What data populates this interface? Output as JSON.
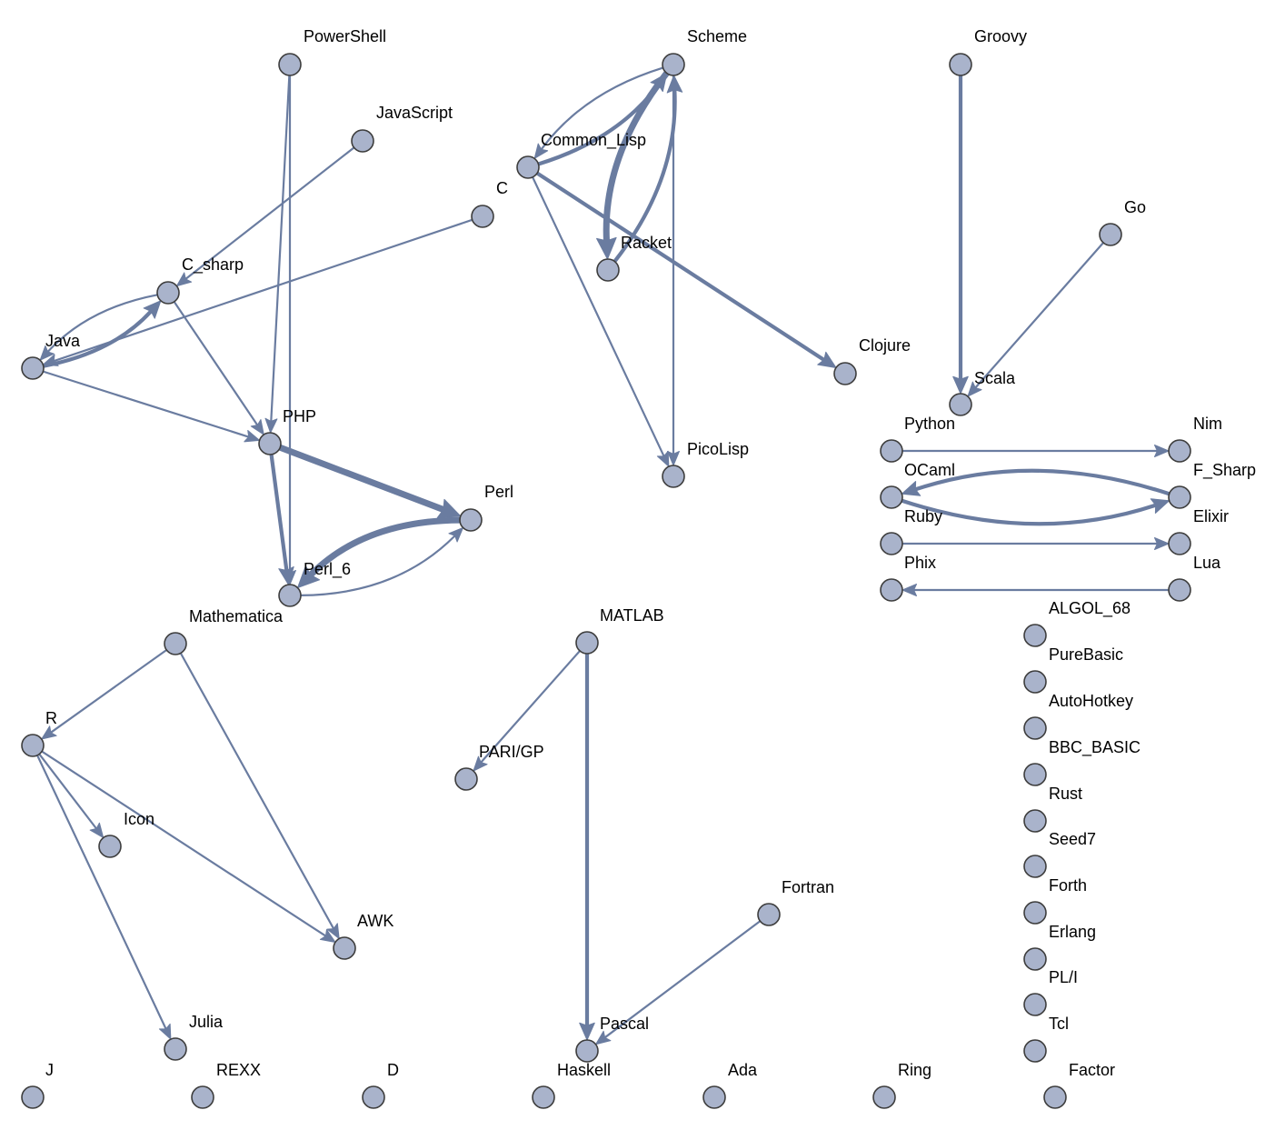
{
  "graph": {
    "nodes": [
      {
        "id": "PowerShell",
        "label": "PowerShell"
      },
      {
        "id": "JavaScript",
        "label": "JavaScript"
      },
      {
        "id": "C",
        "label": "C"
      },
      {
        "id": "C_sharp",
        "label": "C_sharp"
      },
      {
        "id": "Java",
        "label": "Java"
      },
      {
        "id": "PHP",
        "label": "PHP"
      },
      {
        "id": "Perl",
        "label": "Perl"
      },
      {
        "id": "Perl_6",
        "label": "Perl_6"
      },
      {
        "id": "Scheme",
        "label": "Scheme"
      },
      {
        "id": "Common_Lisp",
        "label": "Common_Lisp"
      },
      {
        "id": "Racket",
        "label": "Racket"
      },
      {
        "id": "Clojure",
        "label": "Clojure"
      },
      {
        "id": "PicoLisp",
        "label": "PicoLisp"
      },
      {
        "id": "Groovy",
        "label": "Groovy"
      },
      {
        "id": "Go",
        "label": "Go"
      },
      {
        "id": "Scala",
        "label": "Scala"
      },
      {
        "id": "Python",
        "label": "Python"
      },
      {
        "id": "Nim",
        "label": "Nim"
      },
      {
        "id": "OCaml",
        "label": "OCaml"
      },
      {
        "id": "F_Sharp",
        "label": "F_Sharp"
      },
      {
        "id": "Ruby",
        "label": "Ruby"
      },
      {
        "id": "Elixir",
        "label": "Elixir"
      },
      {
        "id": "Phix",
        "label": "Phix"
      },
      {
        "id": "Lua",
        "label": "Lua"
      },
      {
        "id": "ALGOL_68",
        "label": "ALGOL_68"
      },
      {
        "id": "PureBasic",
        "label": "PureBasic"
      },
      {
        "id": "AutoHotkey",
        "label": "AutoHotkey"
      },
      {
        "id": "BBC_BASIC",
        "label": "BBC_BASIC"
      },
      {
        "id": "Rust",
        "label": "Rust"
      },
      {
        "id": "Seed7",
        "label": "Seed7"
      },
      {
        "id": "Forth",
        "label": "Forth"
      },
      {
        "id": "Erlang",
        "label": "Erlang"
      },
      {
        "id": "PL_I",
        "label": "PL/I"
      },
      {
        "id": "Tcl",
        "label": "Tcl"
      },
      {
        "id": "Mathematica",
        "label": "Mathematica"
      },
      {
        "id": "R",
        "label": "R"
      },
      {
        "id": "Icon",
        "label": "Icon"
      },
      {
        "id": "AWK",
        "label": "AWK"
      },
      {
        "id": "Julia",
        "label": "Julia"
      },
      {
        "id": "MATLAB",
        "label": "MATLAB"
      },
      {
        "id": "PARI_GP",
        "label": "PARI/GP"
      },
      {
        "id": "Fortran",
        "label": "Fortran"
      },
      {
        "id": "Pascal",
        "label": "Pascal"
      },
      {
        "id": "J",
        "label": "J"
      },
      {
        "id": "REXX",
        "label": "REXX"
      },
      {
        "id": "D",
        "label": "D"
      },
      {
        "id": "Haskell",
        "label": "Haskell"
      },
      {
        "id": "Ada",
        "label": "Ada"
      },
      {
        "id": "Ring",
        "label": "Ring"
      },
      {
        "id": "Factor",
        "label": "Factor"
      }
    ],
    "edges": [
      {
        "from": "PowerShell",
        "to": "PHP",
        "weight": 1
      },
      {
        "from": "PowerShell",
        "to": "Perl_6",
        "weight": 1
      },
      {
        "from": "JavaScript",
        "to": "C_sharp",
        "weight": 1
      },
      {
        "from": "C",
        "to": "Java",
        "weight": 1
      },
      {
        "from": "C_sharp",
        "to": "Java",
        "weight": 1
      },
      {
        "from": "Java",
        "to": "C_sharp",
        "weight": 2
      },
      {
        "from": "C_sharp",
        "to": "PHP",
        "weight": 1
      },
      {
        "from": "Java",
        "to": "PHP",
        "weight": 1
      },
      {
        "from": "PHP",
        "to": "Perl",
        "weight": 3
      },
      {
        "from": "PHP",
        "to": "Perl_6",
        "weight": 2
      },
      {
        "from": "Perl_6",
        "to": "Perl",
        "weight": 1
      },
      {
        "from": "Perl",
        "to": "Perl_6",
        "weight": 3
      },
      {
        "from": "Scheme",
        "to": "Common_Lisp",
        "weight": 1
      },
      {
        "from": "Common_Lisp",
        "to": "Scheme",
        "weight": 2
      },
      {
        "from": "Scheme",
        "to": "Racket",
        "weight": 3
      },
      {
        "from": "Racket",
        "to": "Scheme",
        "weight": 2
      },
      {
        "from": "Scheme",
        "to": "PicoLisp",
        "weight": 1
      },
      {
        "from": "Common_Lisp",
        "to": "PicoLisp",
        "weight": 1
      },
      {
        "from": "Common_Lisp",
        "to": "Clojure",
        "weight": 2
      },
      {
        "from": "Groovy",
        "to": "Scala",
        "weight": 2
      },
      {
        "from": "Go",
        "to": "Scala",
        "weight": 1
      },
      {
        "from": "Python",
        "to": "Nim",
        "weight": 1
      },
      {
        "from": "OCaml",
        "to": "F_Sharp",
        "weight": 2
      },
      {
        "from": "F_Sharp",
        "to": "OCaml",
        "weight": 2
      },
      {
        "from": "Ruby",
        "to": "Elixir",
        "weight": 1
      },
      {
        "from": "Lua",
        "to": "Phix",
        "weight": 1
      },
      {
        "from": "Mathematica",
        "to": "R",
        "weight": 1
      },
      {
        "from": "Mathematica",
        "to": "AWK",
        "weight": 1
      },
      {
        "from": "R",
        "to": "Icon",
        "weight": 1
      },
      {
        "from": "R",
        "to": "AWK",
        "weight": 1
      },
      {
        "from": "R",
        "to": "Julia",
        "weight": 1
      },
      {
        "from": "MATLAB",
        "to": "PARI_GP",
        "weight": 1
      },
      {
        "from": "MATLAB",
        "to": "Pascal",
        "weight": 2
      },
      {
        "from": "Fortran",
        "to": "Pascal",
        "weight": 1
      }
    ]
  },
  "colors": {
    "node_fill": "#a9b3cb",
    "node_stroke": "#3d3d3d",
    "edge": "#6a7ca0",
    "label": "#000000",
    "background": "#ffffff"
  }
}
